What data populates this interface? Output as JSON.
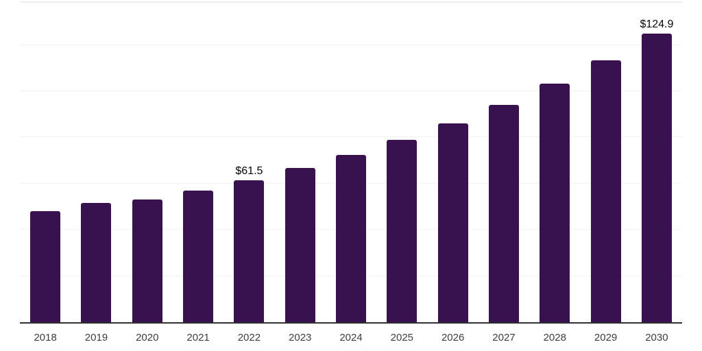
{
  "chart_data": {
    "type": "bar",
    "title": "",
    "xlabel": "",
    "ylabel": "",
    "categories": [
      "2018",
      "2019",
      "2020",
      "2021",
      "2022",
      "2023",
      "2024",
      "2025",
      "2026",
      "2027",
      "2028",
      "2029",
      "2030"
    ],
    "values": [
      48.2,
      51.5,
      53.2,
      57.1,
      61.5,
      66.9,
      72.5,
      79.0,
      86.2,
      94.2,
      103.3,
      113.4,
      124.9
    ],
    "bar_labels": [
      "",
      "",
      "",
      "",
      "$61.5",
      "",
      "",
      "",
      "",
      "",
      "",
      "",
      "$124.9"
    ],
    "ylim": [
      0,
      140
    ],
    "gridline_step": 20,
    "grid": "horizontal-only, no y tick labels, no legend, no title",
    "legend_position": "none",
    "colors": {
      "bar": "#38124E",
      "gridline": "#f2f2f2",
      "top_border": "#ededed",
      "axis_line": "#303030",
      "tick_label": "#3d3d3d",
      "value_label": "#050505",
      "background": "#ffffff"
    }
  }
}
